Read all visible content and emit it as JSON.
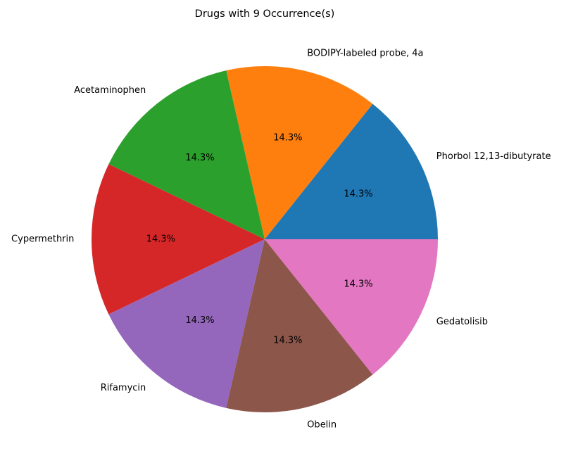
{
  "chart_data": {
    "type": "pie",
    "title": "Drugs with 9 Occurrence(s)",
    "start_angle_deg": 0,
    "direction": "counterclockwise",
    "slices": [
      {
        "label": "Phorbol 12,13-dibutyrate",
        "value": 9,
        "pct_label": "14.3%",
        "color": "#1f77b4"
      },
      {
        "label": "BODIPY-labeled probe, 4a",
        "value": 9,
        "pct_label": "14.3%",
        "color": "#ff7f0e"
      },
      {
        "label": "Acetaminophen",
        "value": 9,
        "pct_label": "14.3%",
        "color": "#2ca02c"
      },
      {
        "label": "Cypermethrin",
        "value": 9,
        "pct_label": "14.3%",
        "color": "#d62728"
      },
      {
        "label": "Rifamycin",
        "value": 9,
        "pct_label": "14.3%",
        "color": "#9467bd"
      },
      {
        "label": "Obelin",
        "value": 9,
        "pct_label": "14.3%",
        "color": "#8c564b"
      },
      {
        "label": "Gedatolisib",
        "value": 9,
        "pct_label": "14.3%",
        "color": "#e377c2"
      }
    ]
  }
}
